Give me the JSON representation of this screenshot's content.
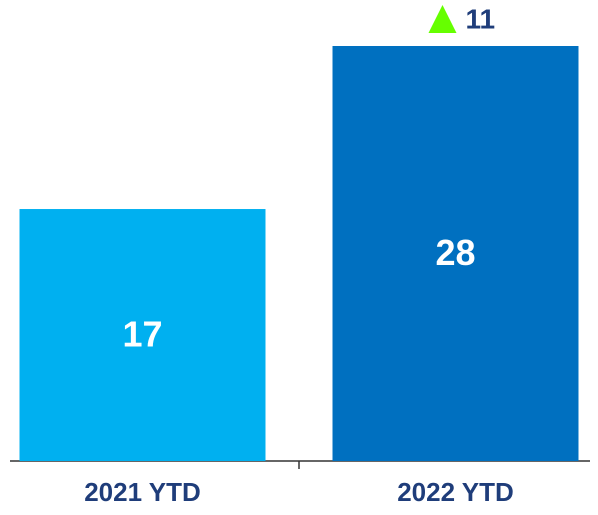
{
  "chart_data": {
    "type": "bar",
    "categories": [
      "2021 YTD",
      "2022 YTD"
    ],
    "values": [
      17,
      28
    ],
    "colors": [
      "#00b0f0",
      "#0070c0"
    ],
    "ylim": [
      0,
      28
    ],
    "change": 11,
    "change_color": "#66ff00"
  }
}
